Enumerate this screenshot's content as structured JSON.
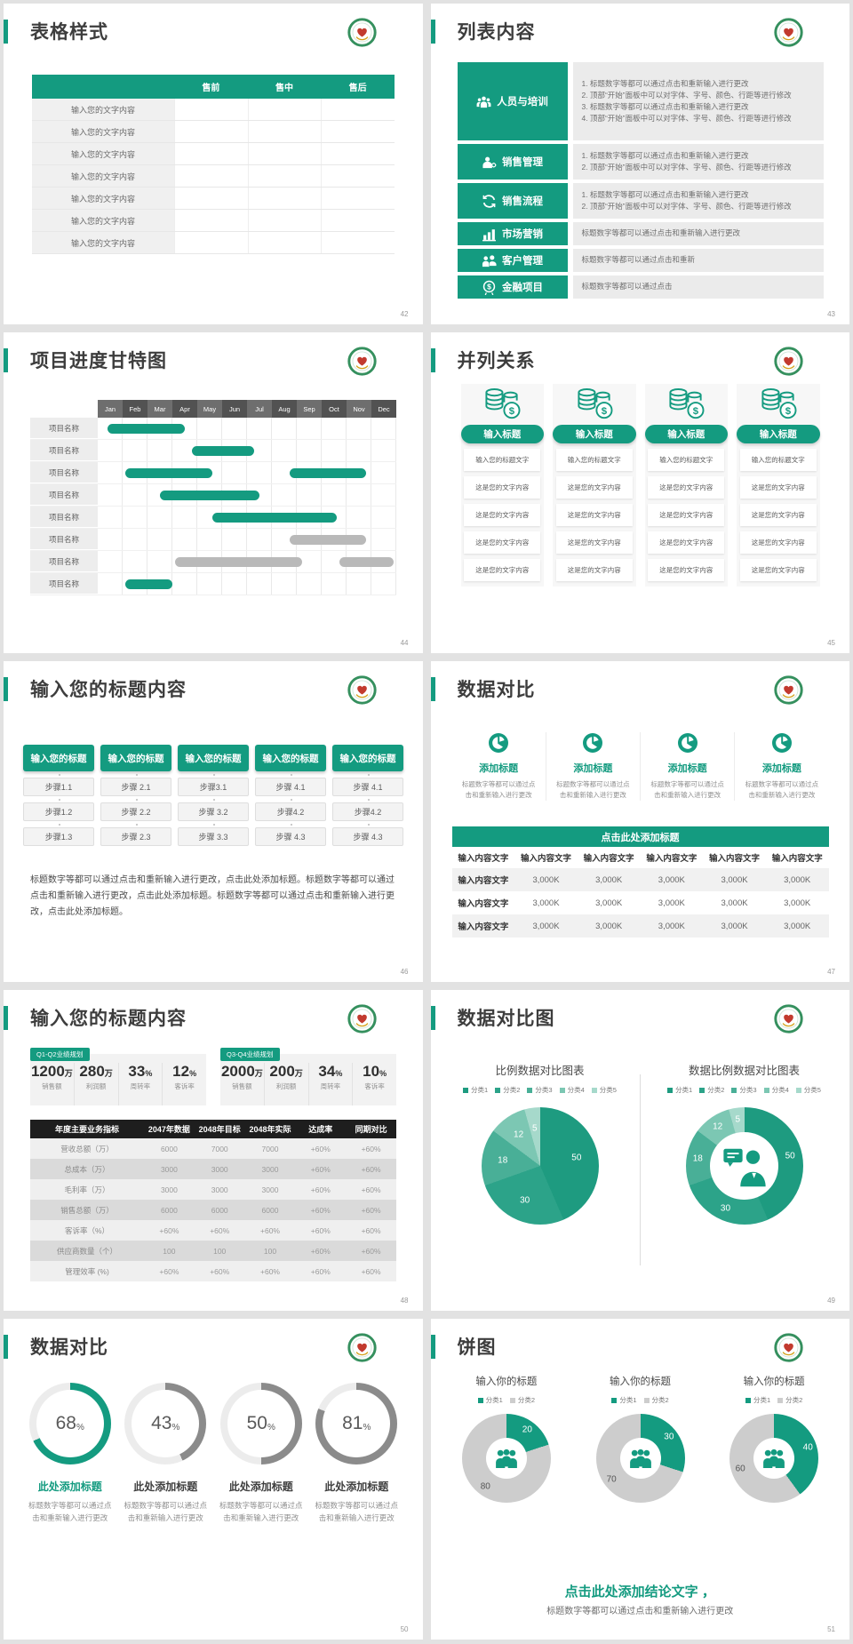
{
  "theme": {
    "teal": "#149B80",
    "gray_bar": "#b9b9b9",
    "header_dark": "#1e1e1e",
    "pie_colors": [
      "#1E9B80",
      "#2CA389",
      "#49AF97",
      "#7CC7B3",
      "#A6D9CB"
    ],
    "donut_gray": "#cdcdcd"
  },
  "slides": {
    "s42": {
      "title": "表格样式",
      "page_num": "42",
      "table": {
        "headers": [
          "",
          "售前",
          "售中",
          "售后"
        ],
        "rows": [
          "输入您的文字内容",
          "输入您的文字内容",
          "输入您的文字内容",
          "输入您的文字内容",
          "输入您的文字内容",
          "输入您的文字内容",
          "输入您的文字内容"
        ]
      }
    },
    "s43": {
      "title": "列表内容",
      "page_num": "43",
      "items": [
        {
          "icon": "people-group-icon",
          "label": "人员与培训",
          "lines": [
            "1. 标题数字等都可以通过点击和重新输入进行更改",
            "2. 顶部“开始”面板中可以对字体、字号、颜色、行距等进行修改",
            "3. 标题数字等都可以通过点击和重新输入进行更改",
            "4. 顶部“开始”面板中可以对字体、字号、颜色、行距等进行修改"
          ]
        },
        {
          "icon": "person-gear-icon",
          "label": "销售管理",
          "lines": [
            "1. 标题数字等都可以通过点击和重新输入进行更改",
            "2. 顶部“开始”面板中可以对字体、字号、颜色、行距等进行修改"
          ]
        },
        {
          "icon": "sync-arrows-icon",
          "label": "销售流程",
          "lines": [
            "1. 标题数字等都可以通过点击和重新输入进行更改",
            "2. 顶部“开始”面板中可以对字体、字号、颜色、行距等进行修改"
          ]
        },
        {
          "icon": "bar-chart-icon",
          "label": "市场营销",
          "lines": [
            "标题数字等都可以通过点击和重新输入进行更改"
          ]
        },
        {
          "icon": "customers-icon",
          "label": "客户管理",
          "lines": [
            "标题数字等都可以通过点击和重新"
          ]
        },
        {
          "icon": "finance-coin-icon",
          "label": "金融项目",
          "lines": [
            "标题数字等都可以通过点击"
          ]
        }
      ]
    },
    "s44": {
      "title": "项目进度甘特图",
      "page_num": "44",
      "months": [
        "Jan",
        "Feb",
        "Mar",
        "Apr",
        "May",
        "Jun",
        "Jul",
        "Aug",
        "Sep",
        "Oct",
        "Nov",
        "Dec"
      ],
      "rows": [
        {
          "label": "项目名称",
          "bars": [
            [
              0.4,
              3.5,
              "t"
            ]
          ]
        },
        {
          "label": "项目名称",
          "bars": [
            [
              3.8,
              6.3,
              "t"
            ]
          ]
        },
        {
          "label": "项目名称",
          "bars": [
            [
              1.1,
              4.6,
              "t"
            ],
            [
              7.7,
              10.8,
              "t"
            ]
          ]
        },
        {
          "label": "项目名称",
          "bars": [
            [
              2.5,
              6.5,
              "t"
            ]
          ]
        },
        {
          "label": "项目名称",
          "bars": [
            [
              4.6,
              9.6,
              "t"
            ]
          ]
        },
        {
          "label": "项目名称",
          "bars": [
            [
              7.7,
              10.8,
              "g"
            ]
          ]
        },
        {
          "label": "项目名称",
          "bars": [
            [
              3.1,
              8.2,
              "g"
            ],
            [
              9.7,
              11.9,
              "g"
            ]
          ]
        },
        {
          "label": "项目名称",
          "bars": [
            [
              1.1,
              3.0,
              "t"
            ]
          ]
        }
      ]
    },
    "s45": {
      "title": "并列关系",
      "page_num": "45",
      "columns": [
        {
          "button": "输入标题",
          "boxes": [
            "输入您的标题文字",
            "这是您的文字内容",
            "这是您的文字内容",
            "这是您的文字内容",
            "这是您的文字内容"
          ]
        },
        {
          "button": "输入标题",
          "boxes": [
            "输入您的标题文字",
            "这是您的文字内容",
            "这是您的文字内容",
            "这是您的文字内容",
            "这是您的文字内容"
          ]
        },
        {
          "button": "输入标题",
          "boxes": [
            "输入您的标题文字",
            "这是您的文字内容",
            "这是您的文字内容",
            "这是您的文字内容",
            "这是您的文字内容"
          ]
        },
        {
          "button": "输入标题",
          "boxes": [
            "输入您的标题文字",
            "这是您的文字内容",
            "这是您的文字内容",
            "这是您的文字内容",
            "这是您的文字内容"
          ]
        }
      ]
    },
    "s46": {
      "title": "输入您的标题内容",
      "page_num": "46",
      "columns": [
        {
          "header": "输入您的标题",
          "steps": [
            "步骤1.1",
            "步骤1.2",
            "步骤1.3"
          ]
        },
        {
          "header": "输入您的标题",
          "steps": [
            "步骤 2.1",
            "步骤 2.2",
            "步骤 2.3"
          ]
        },
        {
          "header": "输入您的标题",
          "steps": [
            "步骤3.1",
            "步骤 3.2",
            "步骤 3.3"
          ]
        },
        {
          "header": "输入您的标题",
          "steps": [
            "步骤 4.1",
            "步骤4.2",
            "步骤 4.3"
          ]
        },
        {
          "header": "输入您的标题",
          "steps": [
            "步骤 4.1",
            "步骤4.2",
            "步骤 4.3"
          ]
        }
      ],
      "paragraph": "标题数字等都可以通过点击和重新输入进行更改，点击此处添加标题。标题数字等都可以通过点击和重新输入进行更改，点击此处添加标题。标题数字等都可以通过点击和重新输入进行更改，点击此处添加标题。"
    },
    "s47": {
      "title": "数据对比",
      "page_num": "47",
      "features": [
        {
          "title": "添加标题",
          "desc": "标题数字等都可以通过点击和重新输入进行更改"
        },
        {
          "title": "添加标题",
          "desc": "标题数字等都可以通过点击和重新输入进行更改"
        },
        {
          "title": "添加标题",
          "desc": "标题数字等都可以通过点击和重新输入进行更改"
        },
        {
          "title": "添加标题",
          "desc": "标题数字等都可以通过点击和重新输入进行更改"
        }
      ],
      "banner": "点击此处添加标题",
      "table": {
        "headers": [
          "输入内容文字",
          "输入内容文字",
          "输入内容文字",
          "输入内容文字",
          "输入内容文字",
          "输入内容文字"
        ],
        "rows": [
          [
            "输入内容文字",
            "3,000K",
            "3,000K",
            "3,000K",
            "3,000K",
            "3,000K"
          ],
          [
            "输入内容文字",
            "3,000K",
            "3,000K",
            "3,000K",
            "3,000K",
            "3,000K"
          ],
          [
            "输入内容文字",
            "3,000K",
            "3,000K",
            "3,000K",
            "3,000K",
            "3,000K"
          ]
        ]
      }
    },
    "s48": {
      "title": "输入您的标题内容",
      "page_num": "48",
      "groups": [
        {
          "tag": "Q1-Q2业绩规划",
          "stats": [
            {
              "v": "1200",
              "u": "万",
              "l": "销售额"
            },
            {
              "v": "280",
              "u": "万",
              "l": "利润额"
            },
            {
              "v": "33",
              "u": "%",
              "l": "周转率"
            },
            {
              "v": "12",
              "u": "%",
              "l": "客诉率"
            }
          ]
        },
        {
          "tag": "Q3-Q4业绩规划",
          "stats": [
            {
              "v": "2000",
              "u": "万",
              "l": "销售额"
            },
            {
              "v": "200",
              "u": "万",
              "l": "利润额"
            },
            {
              "v": "34",
              "u": "%",
              "l": "周转率"
            },
            {
              "v": "10",
              "u": "%",
              "l": "客诉率"
            }
          ]
        }
      ],
      "table": {
        "headers": [
          "年度主要业务指标",
          "2047年数据",
          "2048年目标",
          "2048年实际",
          "达成率",
          "同期对比"
        ],
        "rows": [
          [
            "营收总额（万）",
            "6000",
            "7000",
            "7000",
            "+60%",
            "+60%"
          ],
          [
            "总成本（万）",
            "3000",
            "3000",
            "3000",
            "+60%",
            "+60%"
          ],
          [
            "毛利率（万）",
            "3000",
            "3000",
            "3000",
            "+60%",
            "+60%"
          ],
          [
            "销售总额（万）",
            "6000",
            "6000",
            "6000",
            "+60%",
            "+60%"
          ],
          [
            "客诉率（%）",
            "+60%",
            "+60%",
            "+60%",
            "+60%",
            "+60%"
          ],
          [
            "供应商数量（个）",
            "100",
            "100",
            "100",
            "+60%",
            "+60%"
          ],
          [
            "管理效率 (%)",
            "+60%",
            "+60%",
            "+60%",
            "+60%",
            "+60%"
          ]
        ]
      }
    },
    "s49": {
      "title": "数据对比图",
      "page_num": "49",
      "charts": [
        {
          "type": "pie",
          "title": "比例数据对比图表",
          "legend": [
            "分类1",
            "分类2",
            "分类3",
            "分类4",
            "分类5"
          ],
          "values": [
            50,
            30,
            18,
            12,
            5
          ]
        },
        {
          "type": "donut",
          "title": "数据比例数据对比图表",
          "legend": [
            "分类1",
            "分类2",
            "分类3",
            "分类4",
            "分类5"
          ],
          "values": [
            50,
            30,
            18,
            12,
            5
          ]
        }
      ]
    },
    "s50": {
      "title": "数据对比",
      "page_num": "50",
      "rings": [
        {
          "value": 68,
          "accent": true,
          "label": "此处添加标题",
          "desc": "标题数字等都可以通过点击和重新输入进行更改"
        },
        {
          "value": 43,
          "accent": false,
          "label": "此处添加标题",
          "desc": "标题数字等都可以通过点击和重新输入进行更改"
        },
        {
          "value": 50,
          "accent": false,
          "label": "此处添加标题",
          "desc": "标题数字等都可以通过点击和重新输入进行更改"
        },
        {
          "value": 81,
          "accent": false,
          "label": "此处添加标题",
          "desc": "标题数字等都可以通过点击和重新输入进行更改"
        }
      ]
    },
    "s51": {
      "title": "饼图",
      "page_num": "51",
      "donuts": [
        {
          "title": "输入你的标题",
          "legend": [
            "分类1",
            "分类2"
          ],
          "values": [
            20,
            80
          ]
        },
        {
          "title": "输入你的标题",
          "legend": [
            "分类1",
            "分类2"
          ],
          "values": [
            30,
            70
          ]
        },
        {
          "title": "输入你的标题",
          "legend": [
            "分类1",
            "分类2"
          ],
          "values": [
            40,
            60
          ]
        }
      ],
      "conclusion": "点击此处添加结论文字 ，",
      "conclusion_sub": "标题数字等都可以通过点击和重新输入进行更改"
    }
  },
  "chart_data": [
    {
      "type": "gantt",
      "title": "项目进度甘特图",
      "x": [
        "Jan",
        "Feb",
        "Mar",
        "Apr",
        "May",
        "Jun",
        "Jul",
        "Aug",
        "Sep",
        "Oct",
        "Nov",
        "Dec"
      ],
      "rows": [
        {
          "label": "项目名称",
          "bars": [
            [
              0.4,
              3.5
            ]
          ]
        },
        {
          "label": "项目名称",
          "bars": [
            [
              3.8,
              6.3
            ]
          ]
        },
        {
          "label": "项目名称",
          "bars": [
            [
              1.1,
              4.6
            ],
            [
              7.7,
              10.8
            ]
          ]
        },
        {
          "label": "项目名称",
          "bars": [
            [
              2.5,
              6.5
            ]
          ]
        },
        {
          "label": "项目名称",
          "bars": [
            [
              4.6,
              9.6
            ]
          ]
        },
        {
          "label": "项目名称",
          "bars": [
            [
              7.7,
              10.8
            ]
          ]
        },
        {
          "label": "项目名称",
          "bars": [
            [
              3.1,
              8.2
            ],
            [
              9.7,
              11.9
            ]
          ]
        },
        {
          "label": "项目名称",
          "bars": [
            [
              1.1,
              3.0
            ]
          ]
        }
      ]
    },
    {
      "type": "pie",
      "title": "比例数据对比图表",
      "categories": [
        "分类1",
        "分类2",
        "分类3",
        "分类4",
        "分类5"
      ],
      "values": [
        50,
        30,
        18,
        12,
        5
      ],
      "legend_position": "top"
    },
    {
      "type": "pie",
      "title": "数据比例数据对比图表",
      "categories": [
        "分类1",
        "分类2",
        "分类3",
        "分类4",
        "分类5"
      ],
      "values": [
        50,
        30,
        18,
        12,
        5
      ],
      "legend_position": "top"
    },
    {
      "type": "pie",
      "title": "数据对比 进度环",
      "categories": [
        "68%",
        "43%",
        "50%",
        "81%"
      ],
      "values": [
        68,
        43,
        50,
        81
      ]
    },
    {
      "type": "pie",
      "title": "饼图1",
      "categories": [
        "分类1",
        "分类2"
      ],
      "values": [
        20,
        80
      ]
    },
    {
      "type": "pie",
      "title": "饼图2",
      "categories": [
        "分类1",
        "分类2"
      ],
      "values": [
        30,
        70
      ]
    },
    {
      "type": "pie",
      "title": "饼图3",
      "categories": [
        "分类1",
        "分类2"
      ],
      "values": [
        40,
        60
      ]
    }
  ]
}
